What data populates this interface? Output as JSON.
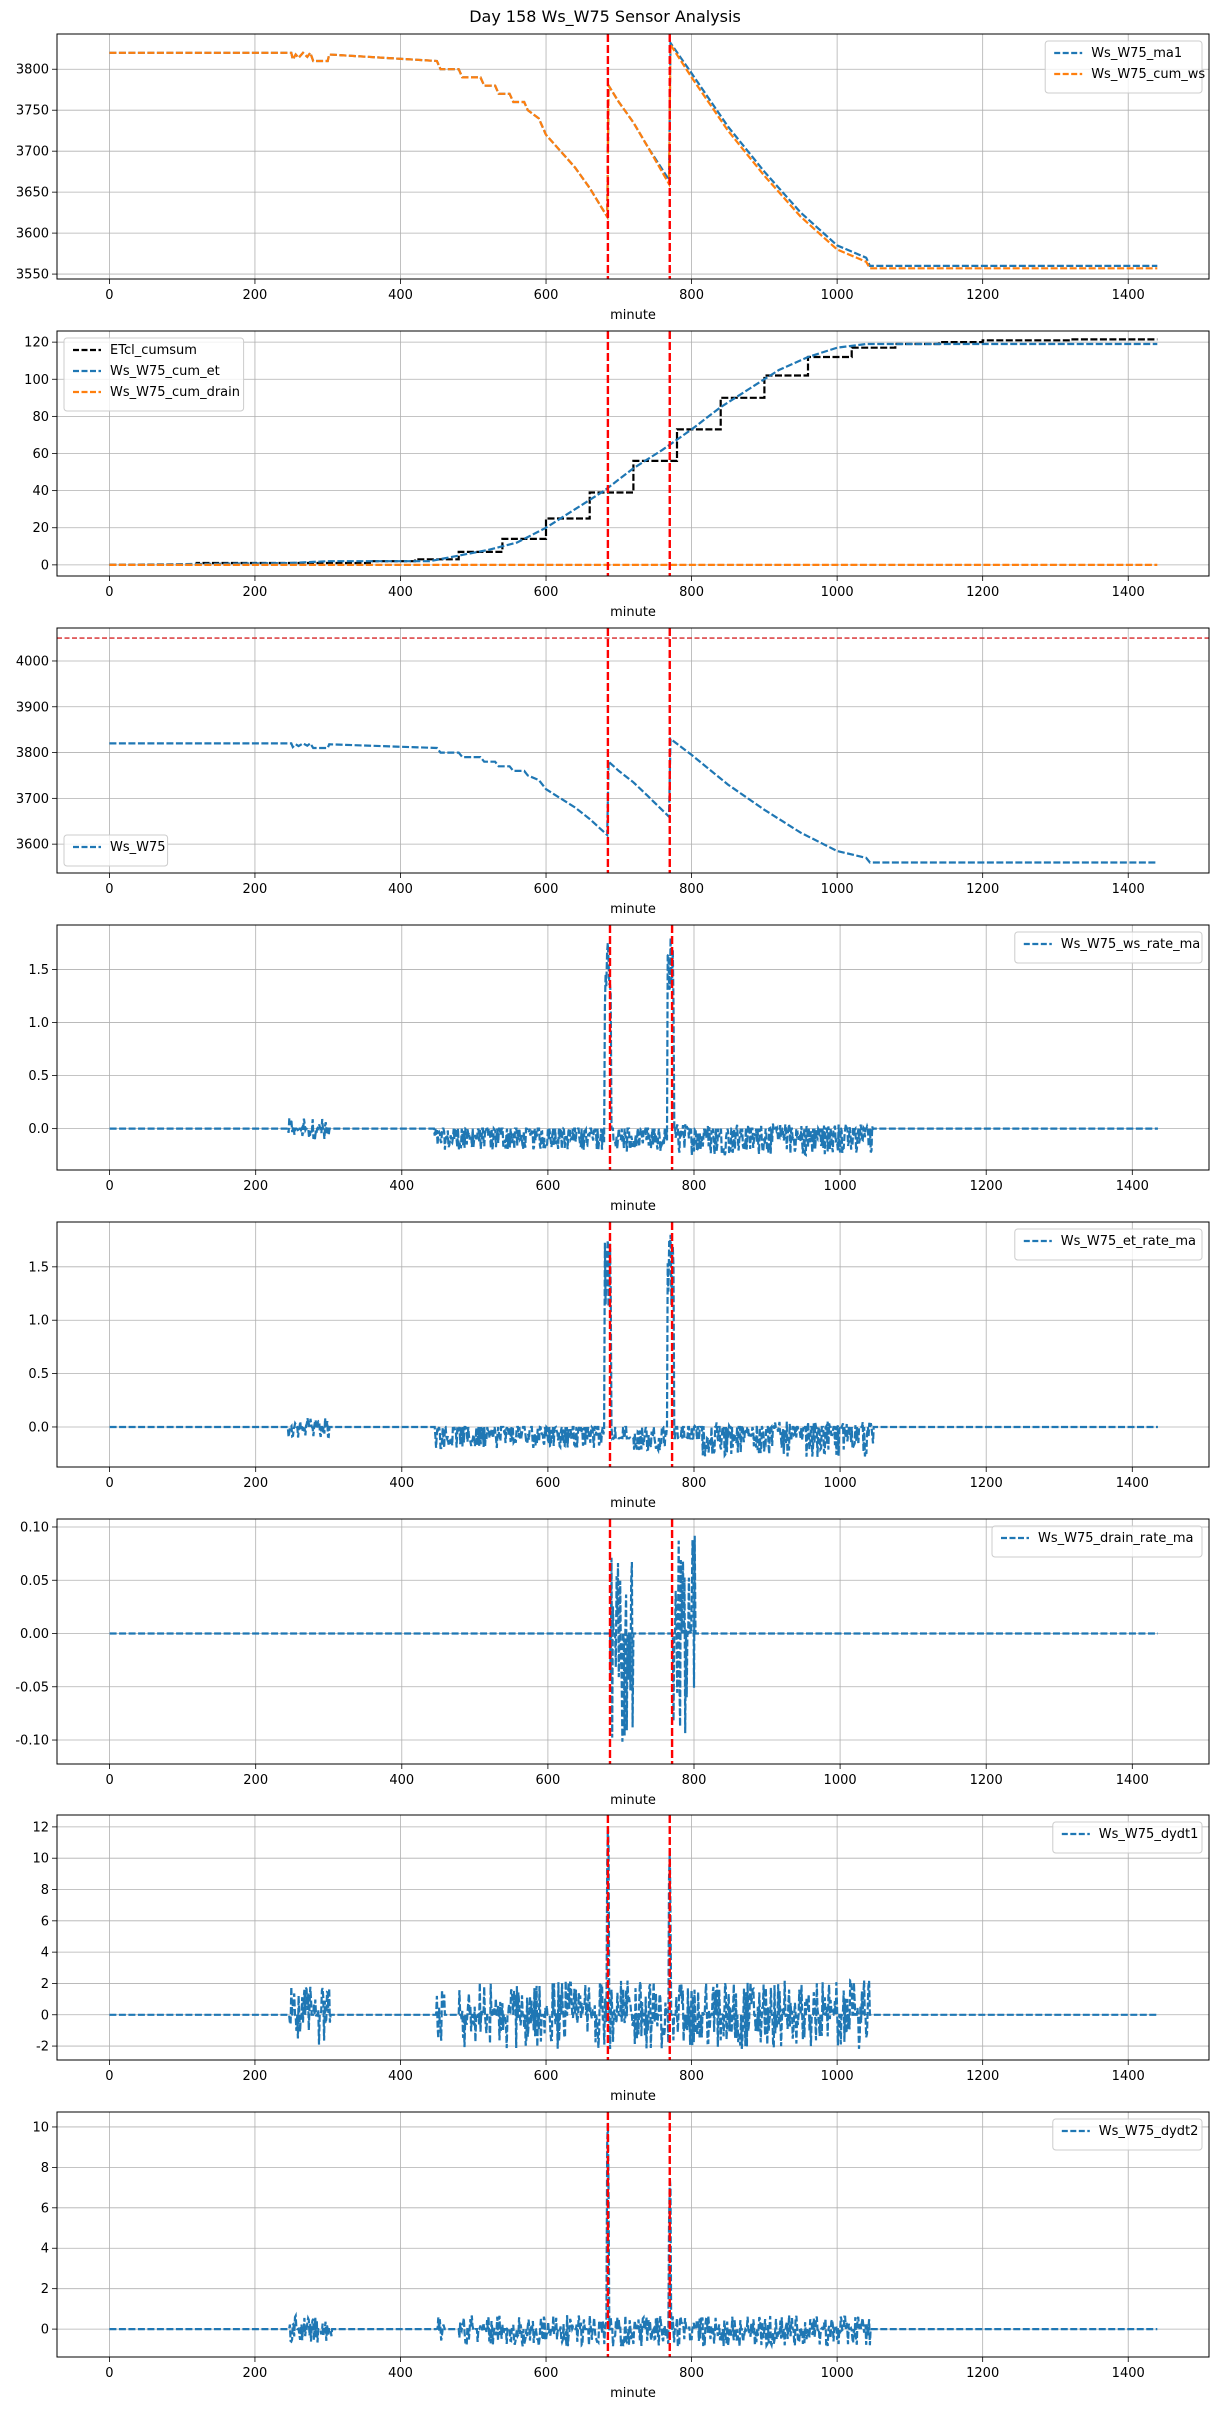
{
  "figure_title": "Day 158 Ws_W75 Sensor Analysis",
  "colors": {
    "blue": "#1f77b4",
    "orange": "#ff7f0e",
    "black": "#000000",
    "event_line": "#ff0000",
    "threshold_line": "#d62728",
    "grid": "#b0b0b0"
  },
  "chart_data": [
    {
      "type": "line",
      "xlabel": "minute",
      "xlim": [
        -72,
        1511
      ],
      "ylim": [
        3544,
        3843
      ],
      "xticks": [
        0,
        200,
        400,
        600,
        800,
        1000,
        1200,
        1400
      ],
      "yticks": [
        3550,
        3600,
        3650,
        3700,
        3750,
        3800
      ],
      "grid": true,
      "legend": "top-right",
      "event_lines": [
        685,
        770
      ],
      "series": [
        {
          "name": "Ws_W75_ma1",
          "color": "#1f77b4",
          "x": [
            0,
            250,
            252,
            256,
            260,
            266,
            272,
            276,
            280,
            300,
            302,
            450,
            455,
            480,
            485,
            510,
            515,
            530,
            535,
            550,
            555,
            570,
            575,
            590,
            600,
            620,
            640,
            660,
            684,
            686,
            700,
            720,
            740,
            769,
            771,
            800,
            850,
            900,
            950,
            1000,
            1040,
            1045,
            1440
          ],
          "y": [
            3820,
            3820,
            3812,
            3818,
            3814,
            3820,
            3815,
            3820,
            3810,
            3810,
            3818,
            3810,
            3800,
            3800,
            3790,
            3790,
            3780,
            3780,
            3770,
            3770,
            3760,
            3760,
            3750,
            3740,
            3720,
            3700,
            3680,
            3655,
            3620,
            3780,
            3760,
            3735,
            3705,
            3665,
            3832,
            3795,
            3730,
            3675,
            3625,
            3585,
            3570,
            3560,
            3560
          ]
        },
        {
          "name": "Ws_W75_cum_ws",
          "color": "#ff7f0e",
          "x": [
            0,
            250,
            252,
            256,
            260,
            266,
            272,
            276,
            280,
            300,
            302,
            450,
            455,
            480,
            485,
            510,
            515,
            530,
            535,
            550,
            555,
            570,
            575,
            590,
            600,
            620,
            640,
            660,
            684,
            686,
            700,
            720,
            740,
            769,
            771,
            800,
            850,
            900,
            950,
            1000,
            1040,
            1045,
            1440
          ],
          "y": [
            3820,
            3820,
            3812,
            3818,
            3814,
            3820,
            3815,
            3820,
            3810,
            3810,
            3818,
            3810,
            3800,
            3800,
            3790,
            3790,
            3780,
            3780,
            3770,
            3770,
            3760,
            3760,
            3750,
            3740,
            3720,
            3700,
            3680,
            3655,
            3620,
            3780,
            3760,
            3735,
            3705,
            3660,
            3830,
            3790,
            3725,
            3670,
            3620,
            3580,
            3565,
            3557,
            3557
          ]
        }
      ]
    },
    {
      "type": "line",
      "xlabel": "minute",
      "xlim": [
        -72,
        1511
      ],
      "ylim": [
        -6,
        126
      ],
      "xticks": [
        0,
        200,
        400,
        600,
        800,
        1000,
        1200,
        1400
      ],
      "yticks": [
        0,
        20,
        40,
        60,
        80,
        100,
        120
      ],
      "grid": true,
      "legend": "top-left",
      "event_lines": [
        685,
        770
      ],
      "series": [
        {
          "name": "ETcl_cumsum",
          "color": "#000000",
          "x": [
            0,
            120,
            120,
            360,
            360,
            420,
            420,
            480,
            480,
            540,
            540,
            600,
            600,
            660,
            660,
            720,
            720,
            780,
            780,
            840,
            840,
            900,
            900,
            960,
            960,
            1020,
            1020,
            1080,
            1080,
            1140,
            1140,
            1200,
            1200,
            1320,
            1320,
            1440
          ],
          "y": [
            0,
            0,
            1,
            1,
            2,
            2,
            3,
            3,
            7,
            7,
            14,
            14,
            25,
            25,
            39,
            39,
            56,
            56,
            73,
            73,
            90,
            90,
            102,
            102,
            112,
            112,
            117,
            117,
            119,
            119,
            120,
            120,
            121,
            121,
            121.5,
            121.5
          ]
        },
        {
          "name": "Ws_W75_cum_et",
          "color": "#1f77b4",
          "x": [
            0,
            250,
            300,
            440,
            480,
            520,
            560,
            600,
            640,
            680,
            720,
            760,
            800,
            840,
            880,
            920,
            960,
            1000,
            1040,
            1440
          ],
          "y": [
            0,
            1,
            2,
            2,
            5,
            8,
            12,
            20,
            30,
            40,
            52,
            62,
            73,
            85,
            95,
            105,
            112,
            117,
            119,
            119
          ]
        },
        {
          "name": "Ws_W75_cum_drain",
          "color": "#ff7f0e",
          "x": [
            0,
            1440
          ],
          "y": [
            0,
            0
          ]
        }
      ]
    },
    {
      "type": "line",
      "xlabel": "minute",
      "xlim": [
        -72,
        1511
      ],
      "ylim": [
        3537,
        4072
      ],
      "xticks": [
        0,
        200,
        400,
        600,
        800,
        1000,
        1200,
        1400
      ],
      "yticks": [
        3600,
        3700,
        3800,
        3900,
        4000
      ],
      "grid": true,
      "legend": "bottom-left",
      "event_lines": [
        685,
        770
      ],
      "threshold": 4050,
      "series": [
        {
          "name": "Ws_W75",
          "color": "#1f77b4",
          "x": [
            0,
            250,
            252,
            256,
            260,
            266,
            272,
            276,
            280,
            300,
            302,
            450,
            455,
            480,
            485,
            510,
            515,
            530,
            535,
            550,
            555,
            570,
            575,
            590,
            600,
            620,
            640,
            660,
            684,
            686,
            700,
            720,
            740,
            769,
            771,
            800,
            850,
            900,
            950,
            1000,
            1040,
            1045,
            1440
          ],
          "y": [
            3820,
            3820,
            3812,
            3818,
            3814,
            3820,
            3815,
            3820,
            3810,
            3810,
            3818,
            3810,
            3800,
            3800,
            3790,
            3790,
            3780,
            3780,
            3770,
            3770,
            3760,
            3760,
            3750,
            3740,
            3720,
            3700,
            3680,
            3655,
            3620,
            3780,
            3760,
            3735,
            3705,
            3660,
            3830,
            3795,
            3730,
            3675,
            3625,
            3585,
            3570,
            3560,
            3560
          ]
        }
      ]
    },
    {
      "type": "line",
      "xlabel": "minute",
      "xlim": [
        -72,
        1505
      ],
      "ylim": [
        -0.39,
        1.92
      ],
      "xticks": [
        0,
        200,
        400,
        600,
        800,
        1000,
        1200,
        1400
      ],
      "yticks": [
        0.0,
        0.5,
        1.0,
        1.5
      ],
      "ytick_labels": [
        "0.0",
        "0.5",
        "1.0",
        "1.5"
      ],
      "grid": true,
      "legend": "top-right",
      "event_lines": [
        685,
        770
      ],
      "series": [
        {
          "name": "Ws_W75_ws_rate_ma",
          "color": "#1f77b4",
          "x_range": [
            0,
            1435
          ],
          "baseline": 0,
          "noise": [
            {
              "x": [
                245,
                300
              ],
              "min": -0.1,
              "max": 0.1
            },
            {
              "x": [
                445,
                680
              ],
              "min": -0.2,
              "max": 0.0
            },
            {
              "x": [
                688,
                764
              ],
              "min": -0.22,
              "max": -0.05
            },
            {
              "x": [
                773,
                1045
              ],
              "min": -0.25,
              "max": 0.05
            }
          ],
          "spikes": [
            {
              "x": [
                678,
                686
              ],
              "peak": 1.75
            },
            {
              "x": [
                764,
                772
              ],
              "peak": 1.8
            }
          ]
        }
      ]
    },
    {
      "type": "line",
      "xlabel": "minute",
      "xlim": [
        -72,
        1505
      ],
      "ylim": [
        -0.375,
        1.92
      ],
      "xticks": [
        0,
        200,
        400,
        600,
        800,
        1000,
        1200,
        1400
      ],
      "yticks": [
        0.0,
        0.5,
        1.0,
        1.5
      ],
      "ytick_labels": [
        "0.0",
        "0.5",
        "1.0",
        "1.5"
      ],
      "grid": true,
      "legend": "top-right",
      "event_lines": [
        685,
        770
      ],
      "series": [
        {
          "name": "Ws_W75_et_rate_ma",
          "color": "#1f77b4",
          "x_range": [
            0,
            1435
          ],
          "baseline": 0,
          "noise": [
            {
              "x": [
                245,
                300
              ],
              "min": -0.1,
              "max": 0.1
            },
            {
              "x": [
                445,
                680
              ],
              "min": -0.2,
              "max": 0.0
            },
            {
              "x": [
                688,
                718
              ],
              "min": -0.11,
              "max": -0.1
            },
            {
              "x": [
                718,
                764
              ],
              "min": -0.22,
              "max": -0.02
            },
            {
              "x": [
                773,
                800
              ],
              "min": -0.11,
              "max": -0.1
            },
            {
              "x": [
                800,
                1045
              ],
              "min": -0.28,
              "max": 0.05
            }
          ],
          "spikes": [
            {
              "x": [
                678,
                686
              ],
              "peak": 1.75
            },
            {
              "x": [
                764,
                772
              ],
              "peak": 1.8
            }
          ]
        }
      ]
    },
    {
      "type": "line",
      "xlabel": "minute",
      "xlim": [
        -72,
        1505
      ],
      "ylim": [
        -0.1225,
        0.1075
      ],
      "xticks": [
        0,
        200,
        400,
        600,
        800,
        1000,
        1200,
        1400
      ],
      "yticks": [
        -0.1,
        -0.05,
        0.0,
        0.05,
        0.1
      ],
      "ytick_labels": [
        "-0.10",
        "-0.05",
        "0.00",
        "0.05",
        "0.10"
      ],
      "grid": true,
      "legend": "top-right",
      "event_lines": [
        685,
        770
      ],
      "series": [
        {
          "name": "Ws_W75_drain_rate_ma",
          "color": "#1f77b4",
          "x_range": [
            0,
            1435
          ],
          "baseline": 0,
          "noise": [
            {
              "x": [
                686,
                716
              ],
              "min": -0.11,
              "max": 0.075
            },
            {
              "x": [
                771,
                801
              ],
              "min": -0.11,
              "max": 0.095
            }
          ],
          "spikes": []
        }
      ]
    },
    {
      "type": "line",
      "xlabel": "minute",
      "xlim": [
        -72,
        1511
      ],
      "ylim": [
        -2.89,
        12.76
      ],
      "xticks": [
        0,
        200,
        400,
        600,
        800,
        1000,
        1200,
        1400
      ],
      "yticks": [
        -2,
        0,
        2,
        4,
        6,
        8,
        10,
        12
      ],
      "grid": true,
      "legend": "top-right",
      "event_lines": [
        685,
        770
      ],
      "series": [
        {
          "name": "Ws_W75_dydt1",
          "color": "#1f77b4",
          "x_range": [
            0,
            1440
          ],
          "baseline": 0,
          "noise": [
            {
              "x": [
                248,
                305
              ],
              "min": -2.0,
              "max": 1.8
            },
            {
              "x": [
                450,
                460
              ],
              "min": -2.0,
              "max": 1.8
            },
            {
              "x": [
                480,
                1045
              ],
              "min": -2.2,
              "max": 2.2
            }
          ],
          "spikes": [
            {
              "x": [
                684,
                686
              ],
              "peak": 12.0
            },
            {
              "x": [
                769,
                771
              ],
              "peak": 10.5
            }
          ]
        }
      ]
    },
    {
      "type": "line",
      "xlabel": "minute",
      "xlim": [
        -72,
        1511
      ],
      "ylim": [
        -1.38,
        10.74
      ],
      "xticks": [
        0,
        200,
        400,
        600,
        800,
        1000,
        1200,
        1400
      ],
      "yticks": [
        0,
        2,
        4,
        6,
        8,
        10
      ],
      "grid": true,
      "legend": "top-right",
      "event_lines": [
        685,
        770
      ],
      "series": [
        {
          "name": "Ws_W75_dydt2",
          "color": "#1f77b4",
          "x_range": [
            0,
            1440
          ],
          "baseline": 0,
          "noise": [
            {
              "x": [
                248,
                305
              ],
              "min": -0.7,
              "max": 0.7
            },
            {
              "x": [
                450,
                460
              ],
              "min": -0.6,
              "max": 0.6
            },
            {
              "x": [
                480,
                1045
              ],
              "min": -0.85,
              "max": 0.7
            }
          ],
          "spikes": [
            {
              "x": [
                684,
                686
              ],
              "peak": 10.2
            },
            {
              "x": [
                769,
                771
              ],
              "peak": 7.5
            }
          ]
        }
      ]
    }
  ]
}
